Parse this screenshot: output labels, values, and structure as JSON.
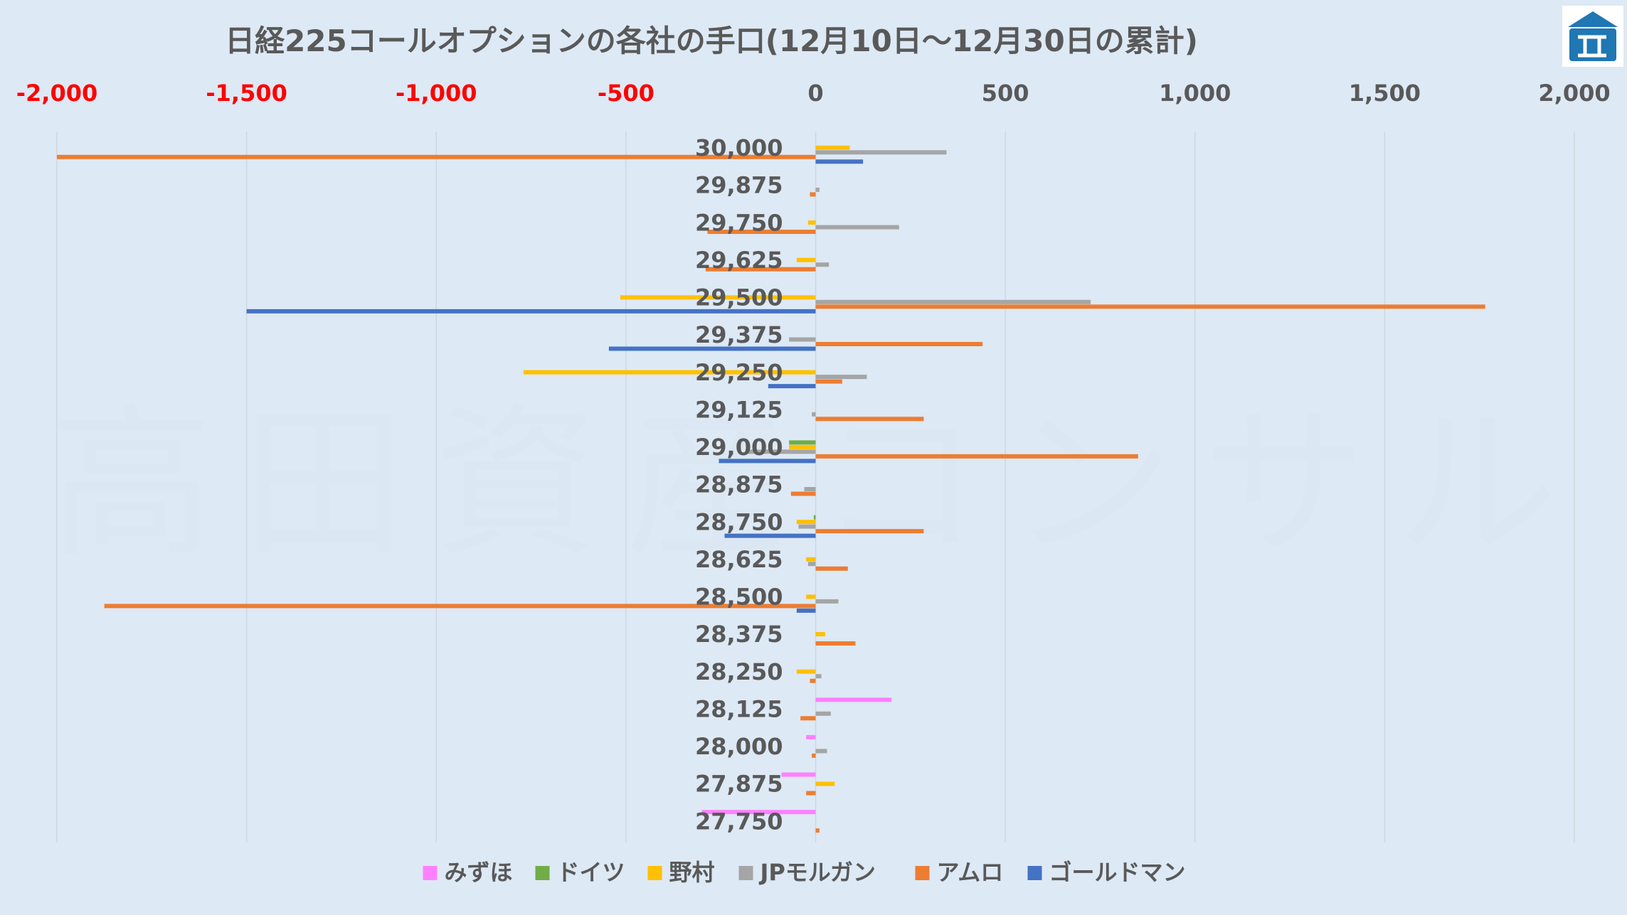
{
  "chart_data": {
    "type": "bar",
    "orientation": "horizontal",
    "title": "日経225コールオプションの各社の手口(12月10日～12月30日の累計)",
    "categories": [
      "30,000",
      "29,875",
      "29,750",
      "29,625",
      "29,500",
      "29,375",
      "29,250",
      "29,125",
      "29,000",
      "28,875",
      "28,750",
      "28,625",
      "28,500",
      "28,375",
      "28,250",
      "28,125",
      "28,000",
      "27,875",
      "27,750"
    ],
    "xlim": [
      -2000,
      2000
    ],
    "x_ticks": [
      -2000,
      -1500,
      -1000,
      -500,
      0,
      500,
      1000,
      1500,
      2000
    ],
    "x_tick_labels": [
      "-2,000",
      "-1,500",
      "-1,000",
      "-500",
      "0",
      "500",
      "1,000",
      "1,500",
      "2,000"
    ],
    "negative_tick_color": "#ff0000",
    "positive_tick_color": "#595959",
    "grid": true,
    "legend_position": "bottom",
    "series": [
      {
        "name": "みずほ",
        "color": "#ff80ff",
        "values": [
          0,
          0,
          0,
          0,
          0,
          0,
          0,
          0,
          0,
          0,
          0,
          0,
          0,
          0,
          0,
          200,
          -25,
          -90,
          -300
        ]
      },
      {
        "name": "ドイツ",
        "color": "#70ad47",
        "values": [
          0,
          0,
          0,
          0,
          0,
          0,
          0,
          0,
          -70,
          0,
          -5,
          0,
          0,
          0,
          0,
          0,
          0,
          0,
          0
        ]
      },
      {
        "name": "野村",
        "color": "#ffc000",
        "values": [
          90,
          0,
          -20,
          -50,
          -515,
          0,
          -770,
          0,
          -70,
          0,
          -50,
          -25,
          -25,
          25,
          -50,
          0,
          0,
          50,
          0
        ]
      },
      {
        "name": "JPモルガン",
        "color": "#a5a5a5",
        "values": [
          345,
          10,
          220,
          35,
          725,
          -70,
          135,
          -10,
          -180,
          -30,
          -45,
          -20,
          60,
          0,
          15,
          40,
          30,
          0,
          0
        ]
      },
      {
        "name": "アムロ",
        "color": "#ed7d31",
        "values": [
          -2000,
          -15,
          -285,
          -290,
          1765,
          440,
          70,
          285,
          850,
          -65,
          285,
          85,
          -1875,
          105,
          -15,
          -40,
          -10,
          -25,
          10
        ]
      },
      {
        "name": "ゴールドマン",
        "color": "#4472c4",
        "values": [
          125,
          0,
          0,
          0,
          -1500,
          -545,
          -125,
          0,
          -255,
          0,
          -240,
          0,
          -50,
          0,
          0,
          0,
          0,
          0,
          0
        ]
      }
    ]
  }
}
